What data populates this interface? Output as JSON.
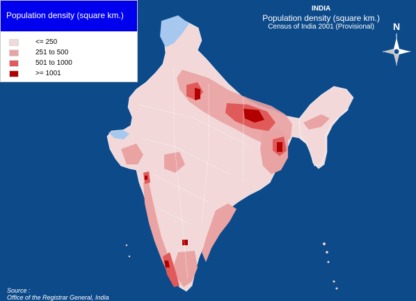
{
  "legend": {
    "title": "Population density (square km.)",
    "items": [
      {
        "label": "<= 250",
        "color": "#f2d8d8"
      },
      {
        "label": "251 to 500",
        "color": "#e9a3a3"
      },
      {
        "label": "501 to 1000",
        "color": "#e05a5a"
      },
      {
        "label": ">= 1001",
        "color": "#b20000"
      }
    ]
  },
  "header": {
    "country": "INDIA",
    "subtitle": "Population density (square km.)",
    "census": "Census of India 2001 (Provisional)"
  },
  "compass": {
    "north_label": "N"
  },
  "source": {
    "label": "Source :",
    "text": "Office of the Registrar General, India"
  },
  "colors": {
    "ocean": "#0d4a8a",
    "land_low": "#f2d8d8",
    "land_mid": "#e9a3a3",
    "land_high": "#e05a5a",
    "land_max": "#b20000",
    "disputed": "#a6c8ef"
  }
}
